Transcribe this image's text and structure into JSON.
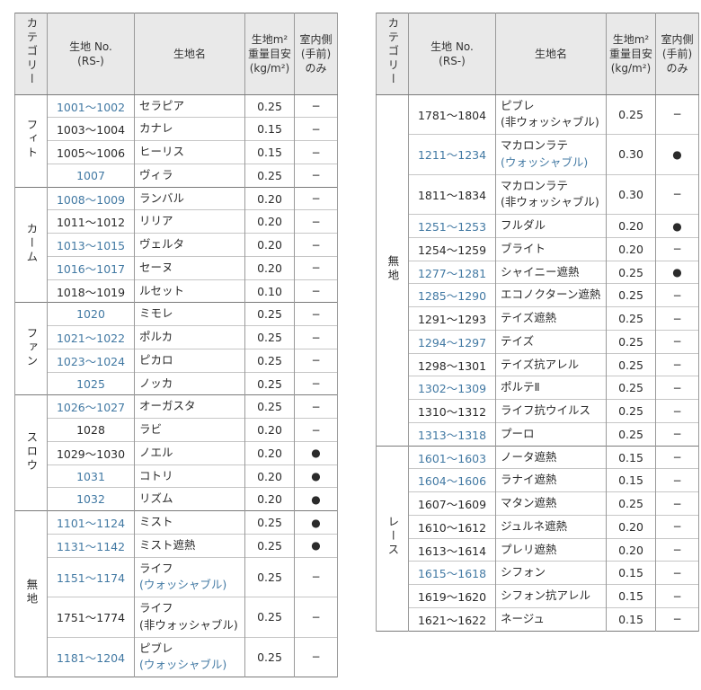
{
  "colors": {
    "link": "#4279a3",
    "header_bg": "#e9e9e9",
    "border": "#7a7a7a",
    "col_line": "#9a9a9a",
    "row_line": "#c6c6c6"
  },
  "header": {
    "category": "カテゴリー",
    "fabric_no": "生地 No.\n(RS-)",
    "fabric_name": "生地名",
    "weight": "生地m²\n重量目安\n(kg/m²)",
    "indoor": "室内側\n(手前)\nのみ"
  },
  "tables": {
    "left": {
      "groups": [
        {
          "category": "フィト",
          "rows": [
            {
              "no": "1001〜1002",
              "link": true,
              "name": "セラピア",
              "weight": "0.25",
              "indoor": "−"
            },
            {
              "no": "1003〜1004",
              "link": false,
              "name": "カナレ",
              "weight": "0.15",
              "indoor": "−"
            },
            {
              "no": "1005〜1006",
              "link": false,
              "name": "ヒーリス",
              "weight": "0.15",
              "indoor": "−"
            },
            {
              "no": "1007",
              "link": true,
              "name": "ヴィラ",
              "weight": "0.25",
              "indoor": "−"
            }
          ]
        },
        {
          "category": "カーム",
          "rows": [
            {
              "no": "1008〜1009",
              "link": true,
              "name": "ランバル",
              "weight": "0.20",
              "indoor": "−"
            },
            {
              "no": "1011〜1012",
              "link": false,
              "name": "リリア",
              "weight": "0.20",
              "indoor": "−"
            },
            {
              "no": "1013〜1015",
              "link": true,
              "name": "ヴェルタ",
              "weight": "0.20",
              "indoor": "−"
            },
            {
              "no": "1016〜1017",
              "link": true,
              "name": "セーヌ",
              "weight": "0.20",
              "indoor": "−"
            },
            {
              "no": "1018〜1019",
              "link": false,
              "name": "ルセット",
              "weight": "0.10",
              "indoor": "−"
            }
          ]
        },
        {
          "category": "ファン",
          "rows": [
            {
              "no": "1020",
              "link": true,
              "name": "ミモレ",
              "weight": "0.25",
              "indoor": "−"
            },
            {
              "no": "1021〜1022",
              "link": true,
              "name": "ポルカ",
              "weight": "0.25",
              "indoor": "−"
            },
            {
              "no": "1023〜1024",
              "link": true,
              "name": "ピカロ",
              "weight": "0.25",
              "indoor": "−"
            },
            {
              "no": "1025",
              "link": true,
              "name": "ノッカ",
              "weight": "0.25",
              "indoor": "−"
            }
          ]
        },
        {
          "category": "スロウ",
          "rows": [
            {
              "no": "1026〜1027",
              "link": true,
              "name": "オーガスタ",
              "weight": "0.25",
              "indoor": "−"
            },
            {
              "no": "1028",
              "link": false,
              "name": "ラビ",
              "weight": "0.20",
              "indoor": "−"
            },
            {
              "no": "1029〜1030",
              "link": false,
              "name": "ノエル",
              "weight": "0.20",
              "indoor": "●"
            },
            {
              "no": "1031",
              "link": true,
              "name": "コトリ",
              "weight": "0.20",
              "indoor": "●"
            },
            {
              "no": "1032",
              "link": true,
              "name": "リズム",
              "weight": "0.20",
              "indoor": "●"
            }
          ]
        },
        {
          "category": "無地",
          "rows": [
            {
              "no": "1101〜1124",
              "link": true,
              "name": "ミスト",
              "weight": "0.25",
              "indoor": "●"
            },
            {
              "no": "1131〜1142",
              "link": true,
              "name": "ミスト遮熱",
              "weight": "0.25",
              "indoor": "●"
            },
            {
              "no": "1151〜1174",
              "link": true,
              "name": "ライフ",
              "note": "(ウォッシャブル)",
              "note_link": true,
              "weight": "0.25",
              "indoor": "−"
            },
            {
              "no": "1751〜1774",
              "link": false,
              "name": "ライフ",
              "note": "(非ウォッシャブル)",
              "note_link": false,
              "weight": "0.25",
              "indoor": "−"
            },
            {
              "no": "1181〜1204",
              "link": true,
              "name": "ピブレ",
              "note": "(ウォッシャブル)",
              "note_link": true,
              "weight": "0.25",
              "indoor": "−"
            }
          ]
        }
      ]
    },
    "right": {
      "groups": [
        {
          "category": "無地",
          "rows": [
            {
              "no": "1781〜1804",
              "link": false,
              "name": "ピブレ",
              "note": "(非ウォッシャブル)",
              "note_link": false,
              "weight": "0.25",
              "indoor": "−"
            },
            {
              "no": "1211〜1234",
              "link": true,
              "name": "マカロンラテ",
              "note": "(ウォッシャブル)",
              "note_link": true,
              "weight": "0.30",
              "indoor": "●"
            },
            {
              "no": "1811〜1834",
              "link": false,
              "name": "マカロンラテ",
              "note": "(非ウォッシャブル)",
              "note_link": false,
              "weight": "0.30",
              "indoor": "−"
            },
            {
              "no": "1251〜1253",
              "link": true,
              "name": "フルダル",
              "weight": "0.20",
              "indoor": "●"
            },
            {
              "no": "1254〜1259",
              "link": false,
              "name": "ブライト",
              "weight": "0.20",
              "indoor": "−"
            },
            {
              "no": "1277〜1281",
              "link": true,
              "name": "シャイニー遮熱",
              "weight": "0.25",
              "indoor": "●"
            },
            {
              "no": "1285〜1290",
              "link": true,
              "name": "エコノクターン遮熱",
              "weight": "0.25",
              "indoor": "−"
            },
            {
              "no": "1291〜1293",
              "link": false,
              "name": "テイズ遮熱",
              "weight": "0.25",
              "indoor": "−"
            },
            {
              "no": "1294〜1297",
              "link": true,
              "name": "テイズ",
              "weight": "0.25",
              "indoor": "−"
            },
            {
              "no": "1298〜1301",
              "link": false,
              "name": "テイズ抗アレル",
              "weight": "0.25",
              "indoor": "−"
            },
            {
              "no": "1302〜1309",
              "link": true,
              "name": "ポルテⅡ",
              "weight": "0.25",
              "indoor": "−"
            },
            {
              "no": "1310〜1312",
              "link": false,
              "name": "ライフ抗ウイルス",
              "weight": "0.25",
              "indoor": "−"
            },
            {
              "no": "1313〜1318",
              "link": true,
              "name": "プーロ",
              "weight": "0.25",
              "indoor": "−"
            }
          ]
        },
        {
          "category": "レース",
          "rows": [
            {
              "no": "1601〜1603",
              "link": true,
              "name": "ノータ遮熱",
              "weight": "0.15",
              "indoor": "−"
            },
            {
              "no": "1604〜1606",
              "link": true,
              "name": "ラナイ遮熱",
              "weight": "0.15",
              "indoor": "−"
            },
            {
              "no": "1607〜1609",
              "link": false,
              "name": "マタン遮熱",
              "weight": "0.25",
              "indoor": "−"
            },
            {
              "no": "1610〜1612",
              "link": false,
              "name": "ジュルネ遮熱",
              "weight": "0.20",
              "indoor": "−"
            },
            {
              "no": "1613〜1614",
              "link": false,
              "name": "プレリ遮熱",
              "weight": "0.20",
              "indoor": "−"
            },
            {
              "no": "1615〜1618",
              "link": true,
              "name": "シフォン",
              "weight": "0.15",
              "indoor": "−"
            },
            {
              "no": "1619〜1620",
              "link": false,
              "name": "シフォン抗アレル",
              "weight": "0.15",
              "indoor": "−"
            },
            {
              "no": "1621〜1622",
              "link": false,
              "name": "ネージュ",
              "weight": "0.15",
              "indoor": "−"
            }
          ]
        }
      ]
    }
  }
}
